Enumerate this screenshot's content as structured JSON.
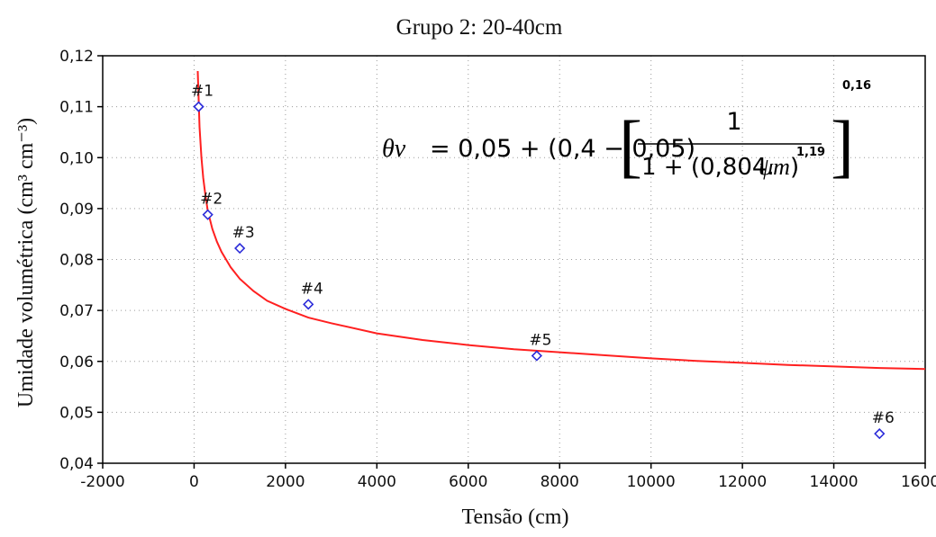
{
  "chart_data": {
    "type": "scatter",
    "title": "Grupo 2: 20-40cm",
    "xlabel": "Tensão (cm)",
    "ylabel": "Umidade volumétrica (cm³ cm⁻³)",
    "xlim": [
      -2000,
      16000
    ],
    "ylim": [
      0.04,
      0.12
    ],
    "x_ticks": [
      -2000,
      0,
      2000,
      4000,
      6000,
      8000,
      10000,
      12000,
      14000,
      16000
    ],
    "y_ticks": [
      0.04,
      0.05,
      0.06,
      0.07,
      0.08,
      0.09,
      0.1,
      0.11,
      0.12
    ],
    "x_tick_labels": [
      "-2000",
      "0",
      "2000",
      "4000",
      "6000",
      "8000",
      "10000",
      "12000",
      "14000",
      "16000"
    ],
    "y_tick_labels": [
      "0,04",
      "0,05",
      "0,06",
      "0,07",
      "0,08",
      "0,09",
      "0,10",
      "0,11",
      "0,12"
    ],
    "grid": true,
    "point_color": "#2b2bd9",
    "curve_color": "#ff2020",
    "points": [
      {
        "label": "#1",
        "x": 100,
        "y": 0.11
      },
      {
        "label": "#2",
        "x": 300,
        "y": 0.0888
      },
      {
        "label": "#3",
        "x": 1000,
        "y": 0.0822
      },
      {
        "label": "#4",
        "x": 2500,
        "y": 0.0712
      },
      {
        "label": "#5",
        "x": 7500,
        "y": 0.0611
      },
      {
        "label": "#6",
        "x": 15000,
        "y": 0.0458
      }
    ],
    "fitted_curve": {
      "x": [
        80,
        120,
        160,
        200,
        250,
        300,
        400,
        500,
        600,
        800,
        1000,
        1300,
        1600,
        2000,
        2500,
        3000,
        4000,
        5000,
        6000,
        7000,
        8000,
        9000,
        10000,
        11000,
        12000,
        13000,
        14000,
        15000,
        16000
      ],
      "y": [
        0.117,
        0.106,
        0.1,
        0.096,
        0.0925,
        0.0895,
        0.086,
        0.0835,
        0.0815,
        0.0785,
        0.0762,
        0.0738,
        0.0719,
        0.0703,
        0.0686,
        0.0675,
        0.0655,
        0.0642,
        0.0632,
        0.0624,
        0.0618,
        0.0612,
        0.0606,
        0.0601,
        0.0597,
        0.0593,
        0.059,
        0.0587,
        0.0585
      ]
    },
    "equation": {
      "lhs": "θv",
      "rhs_main": "= 0,05 + (0,4 − 0,05)",
      "numerator": "1",
      "denominator_prefix": "1 + (0,804.",
      "psi": "ψm",
      "denominator_exp": "1,19",
      "outer_exp": "0,16"
    }
  }
}
